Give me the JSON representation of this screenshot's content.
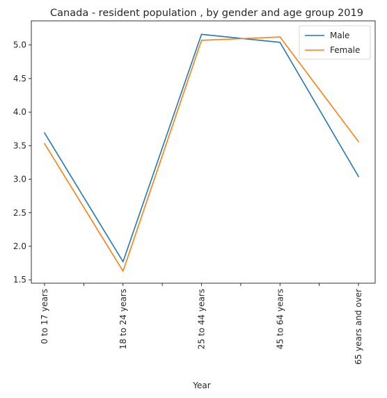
{
  "chart_data": {
    "type": "line",
    "title": "Canada - resident population , by gender and age group 2019",
    "xlabel": "Year",
    "ylabel": "",
    "categories": [
      "0 to 17 years",
      "18 to 24 years",
      "25 to 44 years",
      "45 to 64 years",
      "65 years and over"
    ],
    "series": [
      {
        "name": "Male",
        "color": "#1f77b4",
        "values": [
          3.69,
          1.77,
          5.16,
          5.04,
          3.04
        ]
      },
      {
        "name": "Female",
        "color": "#ff7f0e",
        "values": [
          3.53,
          1.63,
          5.07,
          5.12,
          3.56
        ]
      }
    ],
    "ylim": [
      1.45,
      5.36
    ],
    "yticks": [
      1.5,
      2.0,
      2.5,
      3.0,
      3.5,
      4.0,
      4.5,
      5.0
    ],
    "grid": false,
    "legend": "top-right"
  }
}
